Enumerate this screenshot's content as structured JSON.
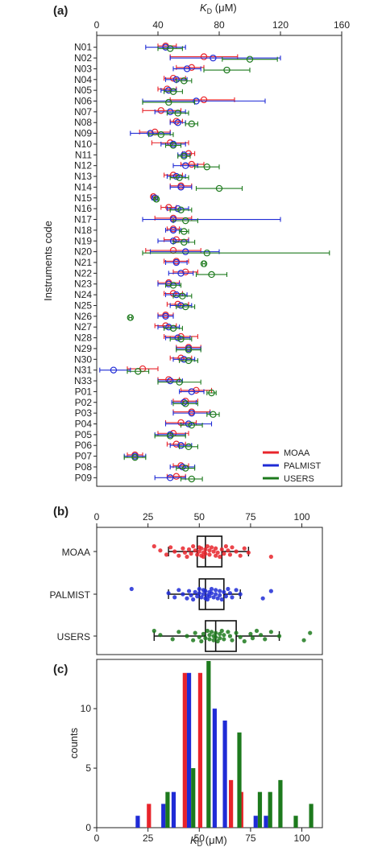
{
  "panel_labels": [
    "(a)",
    "(b)",
    "(c)"
  ],
  "colors": {
    "MOAA": "#e8242b",
    "PALMIST": "#1f2bd6",
    "USERS": "#1d7a1d",
    "axis": "#222222",
    "box": "#111111"
  },
  "chart_data": [
    {
      "type": "scatter",
      "panel": "(a)",
      "xlabel": "K_D (μM)",
      "xlabel_main": "K",
      "xlabel_sub": "D",
      "xlabel_rest": " (μM)",
      "ylabel": "Instruments code",
      "xlim": [
        0,
        160
      ],
      "xticks": [
        "0",
        "40",
        "80",
        "120",
        "160"
      ],
      "xtick_values": [
        0,
        40,
        80,
        120,
        160
      ],
      "legend_position": "bottom-right",
      "legend": [
        "MOAA",
        "PALMIST",
        "USERS"
      ],
      "categories": [
        "N01",
        "N02",
        "N03",
        "N04",
        "N05",
        "N06",
        "N07",
        "N08",
        "N09",
        "N10",
        "N11",
        "N12",
        "N13",
        "N14",
        "N15",
        "N16",
        "N17",
        "N18",
        "N19",
        "N20",
        "N21",
        "N22",
        "N23",
        "N24",
        "N25",
        "N26",
        "N27",
        "N28",
        "N29",
        "N30",
        "N31",
        "N33",
        "P01",
        "P02",
        "P03",
        "P04",
        "P05",
        "P06",
        "P07",
        "P08",
        "P09"
      ],
      "series": [
        {
          "name": "MOAA",
          "points": [
            [
              45,
              40,
              52
            ],
            [
              70,
              48,
              92
            ],
            [
              62,
              52,
              70
            ],
            [
              50,
              44,
              58
            ],
            [
              46,
              40,
              52
            ],
            [
              70,
              48,
              90
            ],
            [
              42,
              30,
              55
            ],
            [
              52,
              48,
              56
            ],
            [
              38,
              28,
              48
            ],
            [
              48,
              36,
              60
            ],
            [
              60,
              56,
              64
            ],
            [
              62,
              55,
              70
            ],
            [
              50,
              44,
              56
            ],
            [
              55,
              48,
              62
            ],
            [
              37,
              36,
              38
            ],
            [
              47,
              42,
              52
            ],
            [
              50,
              38,
              62
            ],
            [
              50,
              46,
              54
            ],
            [
              52,
              44,
              60
            ],
            [
              50,
              32,
              68
            ],
            [
              52,
              44,
              60
            ],
            [
              58,
              50,
              66
            ],
            [
              47,
              40,
              54
            ],
            [
              50,
              44,
              56
            ],
            [
              53,
              46,
              60
            ],
            [
              45,
              40,
              50
            ],
            [
              45,
              38,
              52
            ],
            [
              55,
              44,
              66
            ],
            [
              60,
              52,
              68
            ],
            [
              55,
              48,
              62
            ],
            [
              30,
              20,
              40
            ],
            [
              47,
              40,
              54
            ],
            [
              65,
              55,
              75
            ],
            [
              58,
              50,
              66
            ],
            [
              62,
              50,
              74
            ],
            [
              55,
              45,
              65
            ],
            [
              50,
              40,
              60
            ],
            [
              52,
              46,
              58
            ],
            [
              25,
              20,
              30
            ],
            [
              55,
              50,
              60
            ],
            [
              52,
              46,
              58
            ]
          ]
        },
        {
          "name": "PALMIST",
          "points": [
            [
              45,
              32,
              58
            ],
            [
              76,
              48,
              120
            ],
            [
              59,
              50,
              68
            ],
            [
              52,
              45,
              59
            ],
            [
              47,
              42,
              52
            ],
            [
              65,
              30,
              110
            ],
            [
              48,
              38,
              58
            ],
            [
              53,
              48,
              58
            ],
            [
              35,
              22,
              48
            ],
            [
              50,
              42,
              58
            ],
            [
              57,
              53,
              61
            ],
            [
              58,
              50,
              66
            ],
            [
              52,
              46,
              58
            ],
            [
              55,
              48,
              62
            ],
            [
              38,
              36,
              40
            ],
            [
              53,
              46,
              60
            ],
            [
              50,
              30,
              120
            ],
            [
              50,
              45,
              55
            ],
            [
              50,
              40,
              60
            ],
            [
              58,
              35,
              80
            ],
            [
              52,
              45,
              59
            ],
            [
              55,
              47,
              63
            ],
            [
              47,
              40,
              54
            ],
            [
              52,
              45,
              59
            ],
            [
              55,
              48,
              62
            ],
            [
              45,
              40,
              50
            ],
            [
              47,
              40,
              54
            ],
            [
              53,
              45,
              61
            ],
            [
              60,
              52,
              68
            ],
            [
              57,
              50,
              64
            ],
            [
              11,
              2,
              22
            ],
            [
              48,
              40,
              56
            ],
            [
              62,
              54,
              70
            ],
            [
              57,
              49,
              65
            ],
            [
              62,
              50,
              74
            ],
            [
              60,
              45,
              75
            ],
            [
              48,
              38,
              58
            ],
            [
              55,
              48,
              62
            ],
            [
              25,
              18,
              32
            ],
            [
              56,
              48,
              64
            ],
            [
              48,
              38,
              58
            ]
          ]
        },
        {
          "name": "USERS",
          "points": [
            [
              48,
              40,
              56
            ],
            [
              100,
              82,
              118
            ],
            [
              85,
              70,
              100
            ],
            [
              57,
              52,
              62
            ],
            [
              50,
              44,
              56
            ],
            [
              47,
              30,
              64
            ],
            [
              53,
              46,
              60
            ],
            [
              62,
              58,
              66
            ],
            [
              42,
              34,
              50
            ],
            [
              50,
              45,
              55
            ],
            [
              57,
              53,
              61
            ],
            [
              72,
              64,
              80
            ],
            [
              54,
              48,
              60
            ],
            [
              80,
              65,
              95
            ],
            [
              39,
              38,
              40
            ],
            [
              55,
              48,
              62
            ],
            [
              58,
              50,
              66
            ],
            [
              57,
              54,
              60
            ],
            [
              57,
              50,
              64
            ],
            [
              72,
              30,
              152
            ],
            [
              70,
              69,
              71
            ],
            [
              75,
              65,
              85
            ],
            [
              50,
              45,
              55
            ],
            [
              56,
              50,
              62
            ],
            [
              58,
              52,
              64
            ],
            [
              22,
              21,
              23
            ],
            [
              50,
              44,
              56
            ],
            [
              55,
              48,
              62
            ],
            [
              60,
              52,
              68
            ],
            [
              60,
              54,
              66
            ],
            [
              27,
              20,
              34
            ],
            [
              54,
              40,
              68
            ],
            [
              75,
              72,
              78
            ],
            [
              58,
              50,
              66
            ],
            [
              76,
              72,
              80
            ],
            [
              62,
              55,
              69
            ],
            [
              48,
              38,
              58
            ],
            [
              60,
              54,
              66
            ],
            [
              25,
              18,
              32
            ],
            [
              58,
              52,
              64
            ],
            [
              62,
              55,
              69
            ]
          ]
        }
      ]
    },
    {
      "type": "box",
      "panel": "(b)",
      "xlim": [
        0,
        110
      ],
      "xticks": [
        "0",
        "25",
        "50",
        "75",
        "100"
      ],
      "xtick_values": [
        0,
        25,
        50,
        75,
        100
      ],
      "categories": [
        "MOAA",
        "PALMIST",
        "USERS"
      ],
      "boxes": [
        {
          "name": "MOAA",
          "whisker_low": 35,
          "q1": 49,
          "median": 53,
          "q3": 61,
          "whisker_high": 74,
          "outliers": [
            28,
            85
          ],
          "points": [
            28,
            31,
            34,
            36,
            38,
            40,
            42,
            43,
            44,
            45,
            46,
            47,
            48,
            49,
            50,
            50,
            51,
            51,
            52,
            52,
            53,
            53,
            54,
            55,
            55,
            56,
            57,
            58,
            58,
            59,
            60,
            61,
            62,
            63,
            64,
            65,
            66,
            68,
            70,
            72,
            74,
            85
          ]
        },
        {
          "name": "PALMIST",
          "whisker_low": 35,
          "q1": 50,
          "median": 53,
          "q3": 62,
          "whisker_high": 70,
          "outliers": [
            17,
            81,
            85
          ],
          "points": [
            17,
            35,
            38,
            40,
            42,
            44,
            45,
            46,
            47,
            48,
            49,
            50,
            50,
            51,
            52,
            52,
            53,
            53,
            54,
            54,
            55,
            55,
            56,
            56,
            57,
            58,
            58,
            59,
            60,
            60,
            61,
            62,
            63,
            64,
            65,
            66,
            68,
            70,
            81,
            85
          ]
        },
        {
          "name": "USERS",
          "whisker_low": 28,
          "q1": 53,
          "median": 58,
          "q3": 68,
          "whisker_high": 89,
          "outliers": [
            101,
            104
          ],
          "points": [
            28,
            31,
            37,
            40,
            44,
            47,
            48,
            50,
            51,
            52,
            53,
            54,
            55,
            55,
            56,
            57,
            57,
            58,
            58,
            59,
            60,
            60,
            61,
            62,
            62,
            64,
            65,
            66,
            68,
            70,
            72,
            75,
            76,
            78,
            80,
            82,
            85,
            89,
            101,
            104
          ]
        }
      ]
    },
    {
      "type": "bar",
      "panel": "(c)",
      "xlabel": "K_D (μM)",
      "xlabel_main": "K",
      "xlabel_sub": "D",
      "xlabel_rest": " (μM)",
      "ylabel": "counts",
      "xlim": [
        0,
        110
      ],
      "ylim": [
        0,
        14
      ],
      "xticks": [
        "0",
        "25",
        "50",
        "75",
        "100"
      ],
      "xtick_values": [
        0,
        25,
        50,
        75,
        100
      ],
      "yticks": [
        "0",
        "5",
        "10"
      ],
      "ytick_values": [
        0,
        5,
        10
      ],
      "bin_centers": [
        20,
        27.5,
        32.5,
        37.5,
        45,
        52.5,
        57.5,
        62.5,
        67.5,
        72.5,
        77.5,
        82.5,
        87.5,
        95,
        102.5
      ],
      "series": [
        {
          "name": "MOAA",
          "values": [
            0,
            2,
            0,
            0,
            13,
            13,
            0,
            0,
            4,
            3,
            0,
            0,
            0,
            0,
            0
          ]
        },
        {
          "name": "PALMIST",
          "values": [
            1,
            0,
            2,
            3,
            13,
            0,
            10,
            9,
            0,
            0,
            1,
            1,
            0,
            0,
            0
          ]
        },
        {
          "name": "USERS",
          "values": [
            0,
            0,
            3,
            0,
            5,
            14,
            0,
            0,
            8,
            0,
            3,
            3,
            4,
            1,
            2
          ]
        }
      ]
    }
  ]
}
